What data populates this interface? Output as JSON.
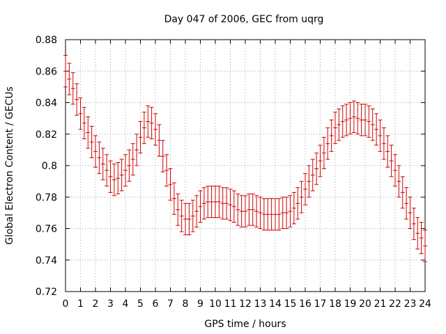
{
  "chart_data": {
    "type": "scatter",
    "title": "Day 047 of 2006, GEC from uqrg",
    "xlabel": "GPS time / hours",
    "ylabel": "Global Electron Content / GECUs",
    "xlim": [
      0,
      24
    ],
    "ylim": [
      0.72,
      0.88
    ],
    "xticks": [
      "0",
      "1",
      "2",
      "3",
      "4",
      "5",
      "6",
      "7",
      "8",
      "9",
      "10",
      "11",
      "12",
      "13",
      "14",
      "15",
      "16",
      "17",
      "18",
      "19",
      "20",
      "21",
      "22",
      "23",
      "24"
    ],
    "yticks": [
      "0.72",
      "0.74",
      "0.76",
      "0.78",
      "0.8",
      "0.82",
      "0.84",
      "0.86",
      "0.88"
    ],
    "grid": true,
    "error_color": "#cc0000",
    "series": [
      {
        "name": "GEC",
        "x": [
          0,
          0.25,
          0.5,
          0.75,
          1,
          1.25,
          1.5,
          1.75,
          2,
          2.25,
          2.5,
          2.75,
          3,
          3.25,
          3.5,
          3.75,
          4,
          4.25,
          4.5,
          4.75,
          5,
          5.25,
          5.5,
          5.75,
          6,
          6.25,
          6.5,
          6.75,
          7,
          7.25,
          7.5,
          7.75,
          8,
          8.25,
          8.5,
          8.75,
          9,
          9.25,
          9.5,
          9.75,
          10,
          10.25,
          10.5,
          10.75,
          11,
          11.25,
          11.5,
          11.75,
          12,
          12.25,
          12.5,
          12.75,
          13,
          13.25,
          13.5,
          13.75,
          14,
          14.25,
          14.5,
          14.75,
          15,
          15.25,
          15.5,
          15.75,
          16,
          16.25,
          16.5,
          16.75,
          17,
          17.25,
          17.5,
          17.75,
          18,
          18.25,
          18.5,
          18.75,
          19,
          19.25,
          19.5,
          19.75,
          20,
          20.25,
          20.5,
          20.75,
          21,
          21.25,
          21.5,
          21.75,
          22,
          22.25,
          22.5,
          22.75,
          23,
          23.25,
          23.5,
          23.75,
          24
        ],
        "y": [
          0.86,
          0.855,
          0.849,
          0.842,
          0.833,
          0.827,
          0.821,
          0.815,
          0.809,
          0.805,
          0.801,
          0.797,
          0.793,
          0.791,
          0.792,
          0.794,
          0.797,
          0.8,
          0.804,
          0.81,
          0.818,
          0.824,
          0.828,
          0.827,
          0.823,
          0.816,
          0.806,
          0.797,
          0.788,
          0.779,
          0.772,
          0.768,
          0.766,
          0.766,
          0.768,
          0.771,
          0.774,
          0.776,
          0.777,
          0.777,
          0.777,
          0.777,
          0.776,
          0.776,
          0.775,
          0.774,
          0.772,
          0.771,
          0.771,
          0.772,
          0.772,
          0.771,
          0.77,
          0.769,
          0.769,
          0.769,
          0.769,
          0.769,
          0.77,
          0.77,
          0.771,
          0.773,
          0.776,
          0.78,
          0.785,
          0.79,
          0.794,
          0.798,
          0.803,
          0.808,
          0.814,
          0.819,
          0.824,
          0.826,
          0.828,
          0.829,
          0.83,
          0.831,
          0.83,
          0.829,
          0.829,
          0.828,
          0.826,
          0.823,
          0.819,
          0.814,
          0.809,
          0.803,
          0.797,
          0.79,
          0.783,
          0.776,
          0.77,
          0.763,
          0.757,
          0.754,
          0.749
        ],
        "error": [
          0.01,
          0.01,
          0.01,
          0.01,
          0.01,
          0.01,
          0.01,
          0.01,
          0.01,
          0.01,
          0.01,
          0.01,
          0.01,
          0.01,
          0.01,
          0.01,
          0.01,
          0.01,
          0.01,
          0.01,
          0.01,
          0.01,
          0.01,
          0.01,
          0.01,
          0.01,
          0.01,
          0.01,
          0.01,
          0.01,
          0.01,
          0.01,
          0.01,
          0.01,
          0.01,
          0.01,
          0.01,
          0.01,
          0.01,
          0.01,
          0.01,
          0.01,
          0.01,
          0.01,
          0.01,
          0.01,
          0.01,
          0.01,
          0.01,
          0.01,
          0.01,
          0.01,
          0.01,
          0.01,
          0.01,
          0.01,
          0.01,
          0.01,
          0.01,
          0.01,
          0.01,
          0.01,
          0.01,
          0.01,
          0.01,
          0.01,
          0.01,
          0.01,
          0.01,
          0.01,
          0.01,
          0.01,
          0.01,
          0.01,
          0.01,
          0.01,
          0.01,
          0.01,
          0.01,
          0.01,
          0.01,
          0.01,
          0.01,
          0.01,
          0.01,
          0.01,
          0.01,
          0.01,
          0.01,
          0.01,
          0.01,
          0.01,
          0.01,
          0.01,
          0.01,
          0.01,
          0.01
        ]
      }
    ]
  }
}
